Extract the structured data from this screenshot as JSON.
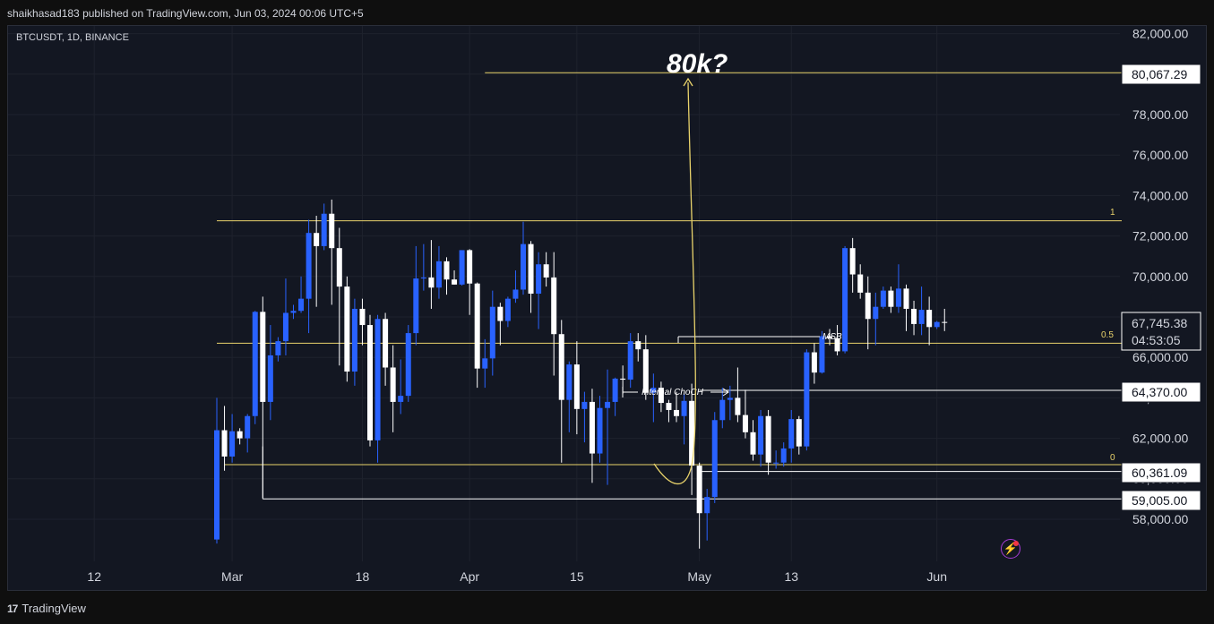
{
  "header": {
    "publisher": "shaikhasad183 published on TradingView.com, Jun 03, 2024 00:06 UTC+5",
    "symbol": "BTCUSDT, 1D, BINANCE"
  },
  "footer": {
    "brand": "TradingView",
    "logo_icon": "tradingview-logo-icon"
  },
  "price_labels": {
    "target": "80,067.29",
    "current_price": "67,745.38",
    "countdown": "04:53:05",
    "level_a": "64,370.00",
    "level_b": "60,361.09",
    "level_c": "59,005.00"
  },
  "annotations": {
    "big": "80k?",
    "msb": "MSB",
    "choch": "Internal ChoCH",
    "fib_1": "1",
    "fib_05": "0.5",
    "fib_0": "0"
  },
  "colors": {
    "bull": "#2962ff",
    "bear": "#ffffff",
    "fib": "#e9d36b",
    "background": "#131722",
    "grid": "#1e222d"
  },
  "chart_data": {
    "type": "candlestick",
    "yaxis": {
      "ticks": [
        58000,
        60000,
        62000,
        64000,
        66000,
        68000,
        70000,
        72000,
        74000,
        76000,
        78000,
        80000,
        82000
      ],
      "tick_labels": [
        "58,000.00",
        "60,000.00",
        "62,000.00",
        "64,000.00",
        "66,000.00",
        "68,000.00",
        "70,000.00",
        "72,000.00",
        "74,000.00",
        "76,000.00",
        "78,000.00",
        "80,000.00",
        "82,000.00"
      ],
      "ylim": [
        56800,
        82500
      ]
    },
    "xaxis": {
      "tick_labels": [
        "12",
        "Mar",
        "18",
        "Apr",
        "15",
        "May",
        "13",
        "Jun"
      ],
      "tick_dates": [
        "2024-02-12",
        "2024-03-01",
        "2024-03-18",
        "2024-04-01",
        "2024-04-15",
        "2024-05-01",
        "2024-05-13",
        "2024-06-01"
      ]
    },
    "levels": [
      {
        "name": "fib-1",
        "value": 72750,
        "from": "2024-02-28"
      },
      {
        "name": "fib-0.5",
        "value": 66700,
        "from": "2024-02-28"
      },
      {
        "name": "fib-0",
        "value": 60700,
        "from": "2024-02-29"
      },
      {
        "name": "target",
        "value": 80067.29,
        "from": "2024-04-03"
      },
      {
        "name": "level-64370",
        "value": 64370,
        "from": "2024-05-01"
      },
      {
        "name": "level-60361",
        "value": 60361.09,
        "from": "2024-05-01"
      },
      {
        "name": "level-59005",
        "value": 59005,
        "from": "2024-03-05"
      }
    ],
    "candles": [
      {
        "date": "2024-02-28",
        "o": 57000,
        "h": 64000,
        "l": 56800,
        "c": 62400
      },
      {
        "date": "2024-02-29",
        "o": 62400,
        "h": 63600,
        "l": 60400,
        "c": 61100
      },
      {
        "date": "2024-03-01",
        "o": 61100,
        "h": 63200,
        "l": 60800,
        "c": 62350
      },
      {
        "date": "2024-03-02",
        "o": 62350,
        "h": 62500,
        "l": 61700,
        "c": 62000
      },
      {
        "date": "2024-03-03",
        "o": 62000,
        "h": 63200,
        "l": 61300,
        "c": 63100
      },
      {
        "date": "2024-03-04",
        "o": 63100,
        "h": 68300,
        "l": 62700,
        "c": 68250
      },
      {
        "date": "2024-03-05",
        "o": 68250,
        "h": 69000,
        "l": 59050,
        "c": 63800
      },
      {
        "date": "2024-03-06",
        "o": 63800,
        "h": 67600,
        "l": 62900,
        "c": 66100
      },
      {
        "date": "2024-03-07",
        "o": 66100,
        "h": 67000,
        "l": 65800,
        "c": 66800
      },
      {
        "date": "2024-03-08",
        "o": 66800,
        "h": 69900,
        "l": 66100,
        "c": 68200
      },
      {
        "date": "2024-03-09",
        "o": 68200,
        "h": 68600,
        "l": 67900,
        "c": 68300
      },
      {
        "date": "2024-03-10",
        "o": 68300,
        "h": 70000,
        "l": 68200,
        "c": 68900
      },
      {
        "date": "2024-03-11",
        "o": 68900,
        "h": 72800,
        "l": 67200,
        "c": 72150
      },
      {
        "date": "2024-03-12",
        "o": 72150,
        "h": 73000,
        "l": 68500,
        "c": 71500
      },
      {
        "date": "2024-03-13",
        "o": 71500,
        "h": 73600,
        "l": 71300,
        "c": 73100
      },
      {
        "date": "2024-03-14",
        "o": 73100,
        "h": 73800,
        "l": 68600,
        "c": 71400
      },
      {
        "date": "2024-03-15",
        "o": 71400,
        "h": 72400,
        "l": 65600,
        "c": 69500
      },
      {
        "date": "2024-03-16",
        "o": 69500,
        "h": 70000,
        "l": 64800,
        "c": 65300
      },
      {
        "date": "2024-03-17",
        "o": 65300,
        "h": 68900,
        "l": 64600,
        "c": 68400
      },
      {
        "date": "2024-03-18",
        "o": 68400,
        "h": 68900,
        "l": 66600,
        "c": 67600
      },
      {
        "date": "2024-03-19",
        "o": 67600,
        "h": 68100,
        "l": 61600,
        "c": 61900
      },
      {
        "date": "2024-03-20",
        "o": 61900,
        "h": 68100,
        "l": 60800,
        "c": 67900
      },
      {
        "date": "2024-03-21",
        "o": 67900,
        "h": 68200,
        "l": 64600,
        "c": 65500
      },
      {
        "date": "2024-03-22",
        "o": 65500,
        "h": 66600,
        "l": 62300,
        "c": 63800
      },
      {
        "date": "2024-03-23",
        "o": 63800,
        "h": 65900,
        "l": 63200,
        "c": 64100
      },
      {
        "date": "2024-03-24",
        "o": 64100,
        "h": 67600,
        "l": 63800,
        "c": 67200
      },
      {
        "date": "2024-03-25",
        "o": 67200,
        "h": 71500,
        "l": 66600,
        "c": 69900
      },
      {
        "date": "2024-03-26",
        "o": 69900,
        "h": 71600,
        "l": 69300,
        "c": 69950
      },
      {
        "date": "2024-03-27",
        "o": 69950,
        "h": 71800,
        "l": 68400,
        "c": 69450
      },
      {
        "date": "2024-03-28",
        "o": 69450,
        "h": 71500,
        "l": 68900,
        "c": 70750
      },
      {
        "date": "2024-03-29",
        "o": 70750,
        "h": 70950,
        "l": 69100,
        "c": 69850
      },
      {
        "date": "2024-03-30",
        "o": 69850,
        "h": 70300,
        "l": 69600,
        "c": 69600
      },
      {
        "date": "2024-03-31",
        "o": 69600,
        "h": 71300,
        "l": 69550,
        "c": 71300
      },
      {
        "date": "2024-04-01",
        "o": 71300,
        "h": 71350,
        "l": 68100,
        "c": 69650
      },
      {
        "date": "2024-04-02",
        "o": 69650,
        "h": 69700,
        "l": 64500,
        "c": 65450
      },
      {
        "date": "2024-04-03",
        "o": 65450,
        "h": 66900,
        "l": 64500,
        "c": 65950
      },
      {
        "date": "2024-04-04",
        "o": 65950,
        "h": 69300,
        "l": 65100,
        "c": 68500
      },
      {
        "date": "2024-04-05",
        "o": 68500,
        "h": 68700,
        "l": 66600,
        "c": 67800
      },
      {
        "date": "2024-04-06",
        "o": 67800,
        "h": 69000,
        "l": 67500,
        "c": 68900
      },
      {
        "date": "2024-04-07",
        "o": 68900,
        "h": 70300,
        "l": 68700,
        "c": 69350
      },
      {
        "date": "2024-04-08",
        "o": 69350,
        "h": 72700,
        "l": 69100,
        "c": 71600
      },
      {
        "date": "2024-04-09",
        "o": 71600,
        "h": 71750,
        "l": 68200,
        "c": 69150
      },
      {
        "date": "2024-04-10",
        "o": 69150,
        "h": 71200,
        "l": 67400,
        "c": 70600
      },
      {
        "date": "2024-04-11",
        "o": 70600,
        "h": 71200,
        "l": 69500,
        "c": 69950
      },
      {
        "date": "2024-04-12",
        "o": 69950,
        "h": 71200,
        "l": 65100,
        "c": 67150
      },
      {
        "date": "2024-04-13",
        "o": 67150,
        "h": 67850,
        "l": 60800,
        "c": 63900
      },
      {
        "date": "2024-04-14",
        "o": 63900,
        "h": 65800,
        "l": 62300,
        "c": 65650
      },
      {
        "date": "2024-04-15",
        "o": 65650,
        "h": 66800,
        "l": 62200,
        "c": 63450
      },
      {
        "date": "2024-04-16",
        "o": 63450,
        "h": 64300,
        "l": 61800,
        "c": 63800
      },
      {
        "date": "2024-04-17",
        "o": 63800,
        "h": 64450,
        "l": 59800,
        "c": 61250
      },
      {
        "date": "2024-04-18",
        "o": 61250,
        "h": 64100,
        "l": 60800,
        "c": 63500
      },
      {
        "date": "2024-04-19",
        "o": 63500,
        "h": 65400,
        "l": 59700,
        "c": 63800
      },
      {
        "date": "2024-04-20",
        "o": 63800,
        "h": 65000,
        "l": 63100,
        "c": 64950
      },
      {
        "date": "2024-04-21",
        "o": 64950,
        "h": 65600,
        "l": 64200,
        "c": 64900
      },
      {
        "date": "2024-04-22",
        "o": 64900,
        "h": 67200,
        "l": 64500,
        "c": 66800
      },
      {
        "date": "2024-04-23",
        "o": 66800,
        "h": 67200,
        "l": 65800,
        "c": 66400
      },
      {
        "date": "2024-04-24",
        "o": 66400,
        "h": 67100,
        "l": 63900,
        "c": 64250
      },
      {
        "date": "2024-04-25",
        "o": 64250,
        "h": 65200,
        "l": 62800,
        "c": 64500
      },
      {
        "date": "2024-04-26",
        "o": 64500,
        "h": 64800,
        "l": 63300,
        "c": 63750
      },
      {
        "date": "2024-04-27",
        "o": 63750,
        "h": 63900,
        "l": 62800,
        "c": 63400
      },
      {
        "date": "2024-04-28",
        "o": 63400,
        "h": 64300,
        "l": 62800,
        "c": 63100
      },
      {
        "date": "2024-04-29",
        "o": 63100,
        "h": 64200,
        "l": 61700,
        "c": 63850
      },
      {
        "date": "2024-04-30",
        "o": 63850,
        "h": 64700,
        "l": 59200,
        "c": 60650
      },
      {
        "date": "2024-05-01",
        "o": 60650,
        "h": 60800,
        "l": 56550,
        "c": 58300
      },
      {
        "date": "2024-05-02",
        "o": 58300,
        "h": 59500,
        "l": 56950,
        "c": 59100
      },
      {
        "date": "2024-05-03",
        "o": 59100,
        "h": 63300,
        "l": 58800,
        "c": 62900
      },
      {
        "date": "2024-05-04",
        "o": 62900,
        "h": 64500,
        "l": 62500,
        "c": 63900
      },
      {
        "date": "2024-05-05",
        "o": 63900,
        "h": 64600,
        "l": 62900,
        "c": 64000
      },
      {
        "date": "2024-05-06",
        "o": 64000,
        "h": 65500,
        "l": 62800,
        "c": 63150
      },
      {
        "date": "2024-05-07",
        "o": 63150,
        "h": 64400,
        "l": 62000,
        "c": 62300
      },
      {
        "date": "2024-05-08",
        "o": 62300,
        "h": 62900,
        "l": 60900,
        "c": 61200
      },
      {
        "date": "2024-05-09",
        "o": 61200,
        "h": 63400,
        "l": 60600,
        "c": 63100
      },
      {
        "date": "2024-05-10",
        "o": 63100,
        "h": 63400,
        "l": 60200,
        "c": 60800
      },
      {
        "date": "2024-05-11",
        "o": 60800,
        "h": 61400,
        "l": 60500,
        "c": 60800
      },
      {
        "date": "2024-05-12",
        "o": 60800,
        "h": 61800,
        "l": 60600,
        "c": 61500
      },
      {
        "date": "2024-05-13",
        "o": 61500,
        "h": 63400,
        "l": 60800,
        "c": 62950
      },
      {
        "date": "2024-05-14",
        "o": 62950,
        "h": 63100,
        "l": 61200,
        "c": 61600
      },
      {
        "date": "2024-05-15",
        "o": 61600,
        "h": 66400,
        "l": 61400,
        "c": 66250
      },
      {
        "date": "2024-05-16",
        "o": 66250,
        "h": 66700,
        "l": 64700,
        "c": 65250
      },
      {
        "date": "2024-05-17",
        "o": 65250,
        "h": 67300,
        "l": 65200,
        "c": 67050
      },
      {
        "date": "2024-05-18",
        "o": 67050,
        "h": 67400,
        "l": 66600,
        "c": 66950
      },
      {
        "date": "2024-05-19",
        "o": 66950,
        "h": 67600,
        "l": 66100,
        "c": 66300
      },
      {
        "date": "2024-05-20",
        "o": 66300,
        "h": 71500,
        "l": 66200,
        "c": 71400
      },
      {
        "date": "2024-05-21",
        "o": 71400,
        "h": 71900,
        "l": 69200,
        "c": 70100
      },
      {
        "date": "2024-05-22",
        "o": 70100,
        "h": 70600,
        "l": 68900,
        "c": 69200
      },
      {
        "date": "2024-05-23",
        "o": 69200,
        "h": 70000,
        "l": 66400,
        "c": 67900
      },
      {
        "date": "2024-05-24",
        "o": 67900,
        "h": 69200,
        "l": 66600,
        "c": 68500
      },
      {
        "date": "2024-05-25",
        "o": 68500,
        "h": 69500,
        "l": 68400,
        "c": 69300
      },
      {
        "date": "2024-05-26",
        "o": 69300,
        "h": 69500,
        "l": 68200,
        "c": 68500
      },
      {
        "date": "2024-05-27",
        "o": 68500,
        "h": 70600,
        "l": 68200,
        "c": 69400
      },
      {
        "date": "2024-05-28",
        "o": 69400,
        "h": 69600,
        "l": 67300,
        "c": 68400
      },
      {
        "date": "2024-05-29",
        "o": 68400,
        "h": 68800,
        "l": 67100,
        "c": 67650
      },
      {
        "date": "2024-05-30",
        "o": 67650,
        "h": 69500,
        "l": 67100,
        "c": 68350
      },
      {
        "date": "2024-05-31",
        "o": 68350,
        "h": 69000,
        "l": 66600,
        "c": 67500
      },
      {
        "date": "2024-06-01",
        "o": 67500,
        "h": 67800,
        "l": 67400,
        "c": 67750
      },
      {
        "date": "2024-06-02",
        "o": 67750,
        "h": 68400,
        "l": 67300,
        "c": 67745
      }
    ]
  }
}
